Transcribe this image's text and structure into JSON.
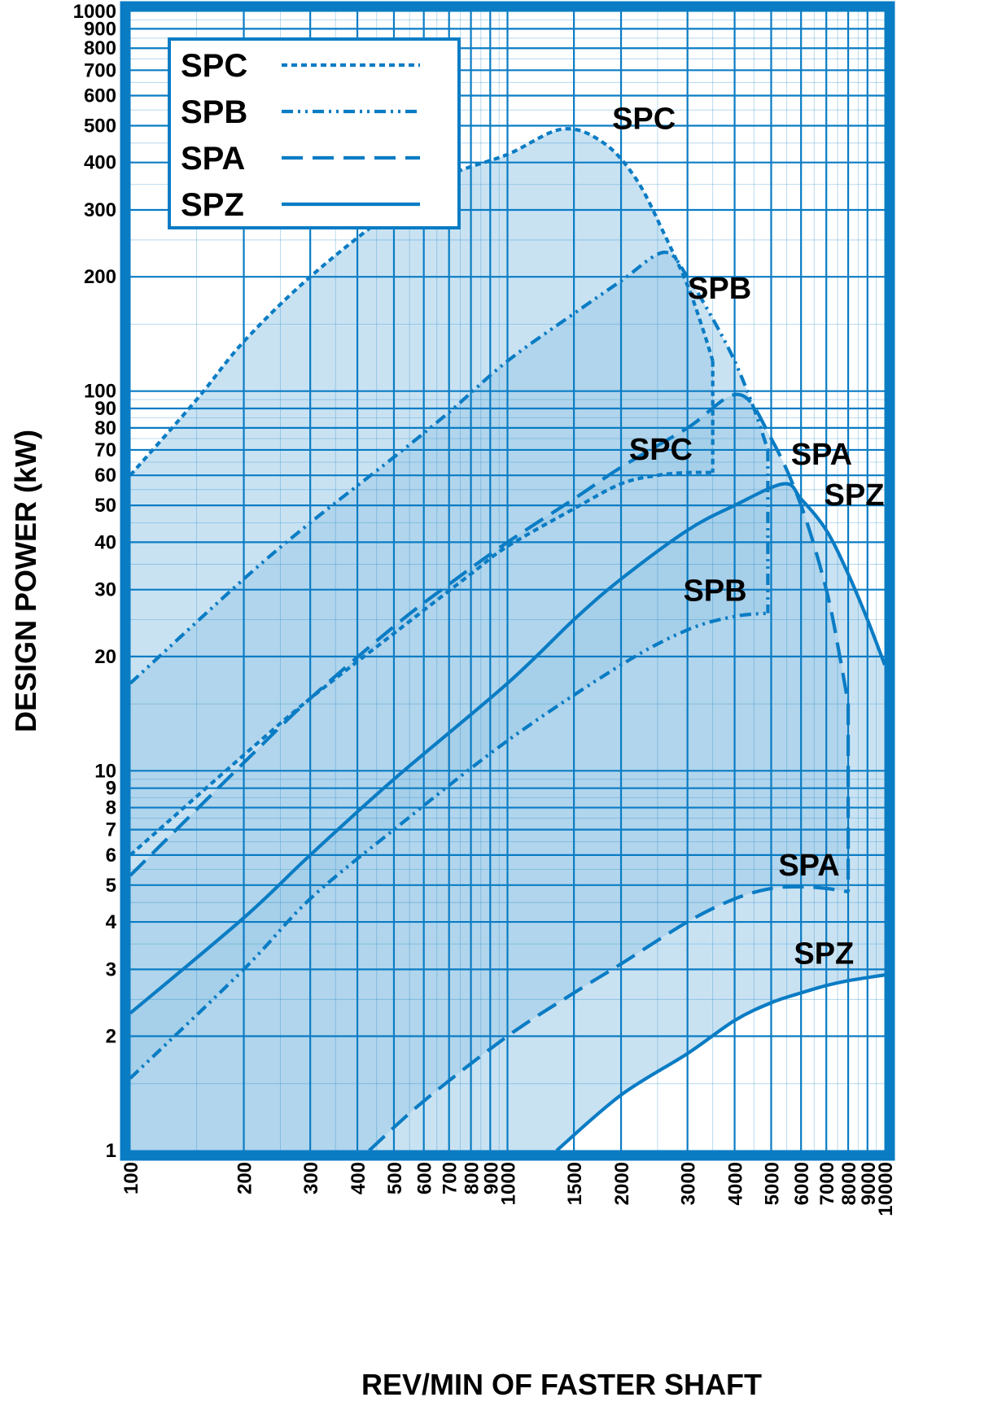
{
  "chart_data": {
    "type": "area",
    "title": "",
    "xlabel": "REV/MIN OF FASTER SHAFT",
    "ylabel": "DESIGN POWER (kW)",
    "x_scale": "log",
    "y_scale": "log",
    "xlim": [
      100,
      10000
    ],
    "ylim": [
      1,
      1000
    ],
    "grid": true,
    "legend_position": "top-left",
    "x_ticks": [
      100,
      200,
      300,
      400,
      500,
      600,
      700,
      800,
      900,
      1000,
      1500,
      2000,
      3000,
      4000,
      5000,
      6000,
      7000,
      8000,
      9000,
      10000
    ],
    "x_tick_labels": [
      "100",
      "200",
      "300",
      "400",
      "500",
      "600",
      "700",
      "800",
      "900",
      "1000",
      "1500",
      "2000",
      "3000",
      "4000",
      "5000",
      "6000",
      "7000",
      "8000",
      "9000",
      "10000"
    ],
    "y_ticks": [
      1,
      2,
      3,
      4,
      5,
      6,
      7,
      8,
      9,
      10,
      20,
      30,
      40,
      50,
      60,
      70,
      80,
      90,
      100,
      200,
      300,
      400,
      500,
      600,
      700,
      800,
      900,
      1000
    ],
    "y_tick_labels": [
      "1",
      "2",
      "3",
      "4",
      "5",
      "6",
      "7",
      "8",
      "9",
      "10",
      "20",
      "30",
      "40",
      "50",
      "60",
      "70",
      "80",
      "90",
      "100",
      "200",
      "300",
      "400",
      "500",
      "600",
      "700",
      "800",
      "900",
      "1000"
    ],
    "colors": {
      "frame": "#0a7cc4",
      "line": "#0a7cc4",
      "grid": "#0a7cc4",
      "region_light": "#c6e1f2",
      "region_mid": "#9dcbe8",
      "region_dark": "#78b5dd"
    },
    "legend": [
      {
        "name": "SPC",
        "dash": "short-dash"
      },
      {
        "name": "SPB",
        "dash": "dash-dot-dot"
      },
      {
        "name": "SPA",
        "dash": "long-dash"
      },
      {
        "name": "SPZ",
        "dash": "solid"
      }
    ],
    "series": [
      {
        "name": "SPC",
        "dash": "short-dash",
        "upper": [
          [
            100,
            60
          ],
          [
            150,
            95
          ],
          [
            200,
            135
          ],
          [
            300,
            200
          ],
          [
            500,
            300
          ],
          [
            700,
            370
          ],
          [
            1000,
            420
          ],
          [
            1400,
            490
          ],
          [
            1800,
            450
          ],
          [
            2200,
            360
          ],
          [
            2600,
            260
          ],
          [
            3000,
            190
          ],
          [
            3300,
            145
          ],
          [
            3500,
            120
          ]
        ],
        "lower": [
          [
            100,
            6
          ],
          [
            200,
            11
          ],
          [
            300,
            15.5
          ],
          [
            500,
            23
          ],
          [
            800,
            33
          ],
          [
            1000,
            39
          ],
          [
            1500,
            49
          ],
          [
            2000,
            57
          ],
          [
            2500,
            60
          ],
          [
            3000,
            61
          ],
          [
            3500,
            61
          ]
        ],
        "end_rpm": 3500,
        "labels": [
          {
            "text": "SPC",
            "x": 2300,
            "y": 490
          },
          {
            "text": "SPC",
            "x": 2550,
            "y": 66
          }
        ]
      },
      {
        "name": "SPB",
        "dash": "dash-dot-dot",
        "upper": [
          [
            100,
            17
          ],
          [
            200,
            32
          ],
          [
            300,
            45
          ],
          [
            500,
            67
          ],
          [
            700,
            88
          ],
          [
            1000,
            120
          ],
          [
            1500,
            160
          ],
          [
            2000,
            195
          ],
          [
            2600,
            232
          ],
          [
            3000,
            200
          ],
          [
            3500,
            155
          ],
          [
            4000,
            120
          ],
          [
            4500,
            90
          ],
          [
            4900,
            70
          ]
        ],
        "lower": [
          [
            100,
            1.55
          ],
          [
            200,
            3
          ],
          [
            300,
            4.6
          ],
          [
            500,
            7
          ],
          [
            1000,
            12
          ],
          [
            2000,
            19
          ],
          [
            3000,
            23.5
          ],
          [
            4000,
            25.5
          ],
          [
            4900,
            26
          ]
        ],
        "end_rpm": 4900,
        "labels": [
          {
            "text": "SPB",
            "x": 3650,
            "y": 175
          },
          {
            "text": "SPB",
            "x": 3550,
            "y": 28
          }
        ]
      },
      {
        "name": "SPA",
        "dash": "long-dash",
        "upper": [
          [
            100,
            5.3
          ],
          [
            200,
            10.5
          ],
          [
            300,
            15.5
          ],
          [
            500,
            24
          ],
          [
            700,
            31
          ],
          [
            1000,
            40
          ],
          [
            1500,
            52
          ],
          [
            2000,
            63
          ],
          [
            3000,
            80
          ],
          [
            4100,
            98
          ],
          [
            5000,
            75
          ],
          [
            6000,
            50
          ],
          [
            7000,
            30
          ],
          [
            7600,
            20
          ],
          [
            8000,
            15
          ]
        ],
        "lower": [
          [
            430,
            1
          ],
          [
            600,
            1.35
          ],
          [
            1000,
            2
          ],
          [
            1500,
            2.6
          ],
          [
            2000,
            3.1
          ],
          [
            3000,
            4
          ],
          [
            4000,
            4.6
          ],
          [
            5000,
            4.9
          ],
          [
            6000,
            4.95
          ],
          [
            7000,
            4.9
          ],
          [
            8000,
            4.8
          ]
        ],
        "end_rpm": 8000,
        "labels": [
          {
            "text": "SPA",
            "x": 6800,
            "y": 64
          },
          {
            "text": "SPA",
            "x": 6300,
            "y": 5.3
          }
        ]
      },
      {
        "name": "SPZ",
        "dash": "solid",
        "upper": [
          [
            100,
            2.3
          ],
          [
            200,
            4.1
          ],
          [
            300,
            6
          ],
          [
            500,
            9.5
          ],
          [
            1000,
            17
          ],
          [
            1500,
            25
          ],
          [
            2000,
            32
          ],
          [
            3000,
            43
          ],
          [
            4000,
            50
          ],
          [
            5400,
            57
          ],
          [
            6000,
            52
          ],
          [
            7000,
            43
          ],
          [
            8000,
            33
          ],
          [
            9000,
            25
          ],
          [
            10000,
            19
          ]
        ],
        "lower": [
          [
            1350,
            1
          ],
          [
            2000,
            1.4
          ],
          [
            3000,
            1.8
          ],
          [
            4000,
            2.2
          ],
          [
            5000,
            2.45
          ],
          [
            6000,
            2.6
          ],
          [
            7000,
            2.72
          ],
          [
            8000,
            2.8
          ],
          [
            10000,
            2.9
          ]
        ],
        "end_rpm": 10000,
        "labels": [
          {
            "text": "SPZ",
            "x": 8300,
            "y": 50
          },
          {
            "text": "SPZ",
            "x": 6900,
            "y": 3.1
          }
        ]
      }
    ]
  }
}
